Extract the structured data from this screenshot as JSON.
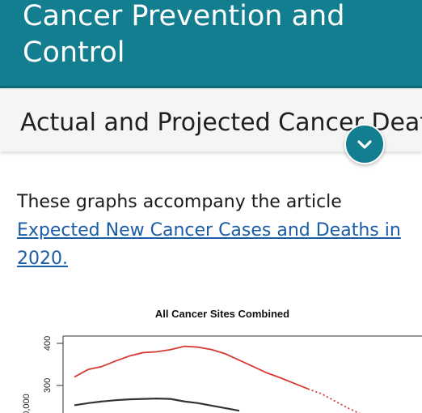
{
  "header": {
    "title": "Cancer Prevention and Control"
  },
  "section": {
    "title": "Actual and Projected Cancer Deaths"
  },
  "intro": {
    "text": "These graphs accompany the article",
    "link_text": "Expected New Cancer Cases and Deaths in 2020."
  },
  "icons": {
    "collapse": "chevron-down-icon"
  },
  "colors": {
    "header_bg": "#137e8f",
    "accent_red": "#d63a32",
    "link": "#1a5ca6"
  },
  "chart_data": {
    "type": "line",
    "title": "All Cancer Sites Combined",
    "y_ticks": [
      "400",
      "300"
    ],
    "y_axis_label_partial": "0,000",
    "series": [
      {
        "style": "solid-then-dotted",
        "color": "#d63a32",
        "values_relative": [
          320,
          338,
          345,
          358,
          370,
          378,
          380,
          385,
          393,
          391,
          385,
          375,
          360,
          345,
          330,
          318,
          305,
          292,
          280,
          262,
          245,
          230
        ]
      },
      {
        "style": "solid",
        "color": "#333333",
        "values_relative": [
          253,
          258,
          262,
          265,
          267,
          268,
          269,
          268,
          262,
          258,
          252,
          246,
          240
        ]
      }
    ]
  }
}
